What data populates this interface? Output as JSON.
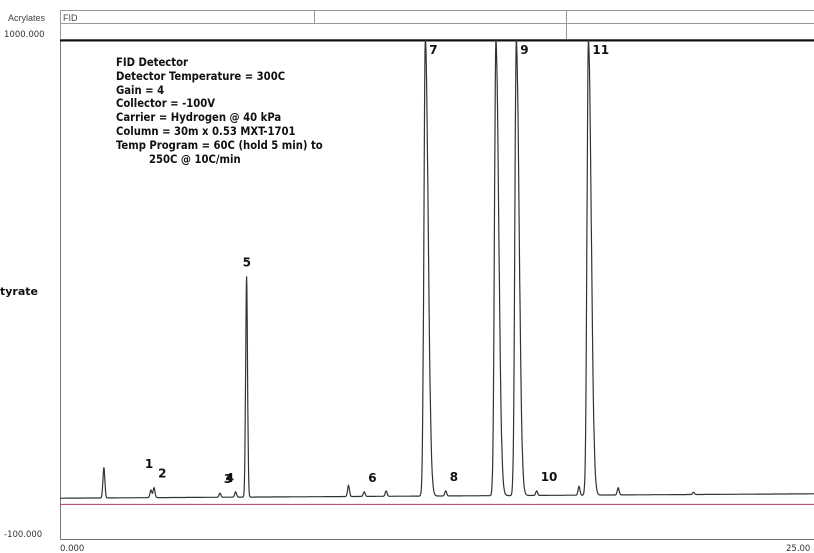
{
  "header": {
    "name_label": "Acrylates",
    "detector_value": "FID"
  },
  "annotation_lines": [
    "FID Detector",
    "Detector Temperature = 300C",
    "Gain = 4",
    "Collector = -100V",
    "Carrier = Hydrogen @ 40 kPa",
    "Column = 30m x 0.53 MXT-1701",
    "Temp Program = 60C (hold 5 min) to",
    "250C @ 10C/min"
  ],
  "colors": {
    "trace": "#333333",
    "baseline": "#b04060",
    "grid": "#888888"
  },
  "chart_data": {
    "type": "line",
    "title": "",
    "xlabel": "",
    "ylabel": "tyrate",
    "xlim": [
      0.0,
      25.0
    ],
    "ylim": [
      -100.0,
      1000.0
    ],
    "y_tick_labels": [
      "1000.000",
      "-100.000"
    ],
    "x_tick_labels": [
      "0.000",
      "25.00"
    ],
    "baseline_level": -10,
    "peaks": [
      {
        "label": "",
        "x": 1.4,
        "y": 60
      },
      {
        "label": "1",
        "x": 2.9,
        "y": 10
      },
      {
        "label": "2",
        "x": 3.0,
        "y": 15
      },
      {
        "label": "3",
        "x": 5.1,
        "y": 3
      },
      {
        "label": "4",
        "x": 5.6,
        "y": 6
      },
      {
        "label": "5",
        "x": 5.95,
        "y": 480
      },
      {
        "label": "",
        "x": 9.2,
        "y": 20
      },
      {
        "label": "6",
        "x": 9.7,
        "y": 6
      },
      {
        "label": "",
        "x": 10.4,
        "y": 8
      },
      {
        "label": "7",
        "x": 11.65,
        "y": 1000
      },
      {
        "label": "8",
        "x": 12.3,
        "y": 8
      },
      {
        "label": "",
        "x": 13.9,
        "y": 1000
      },
      {
        "label": "9",
        "x": 14.55,
        "y": 1000
      },
      {
        "label": "10",
        "x": 15.2,
        "y": 8
      },
      {
        "label": "",
        "x": 16.55,
        "y": 18
      },
      {
        "label": "11",
        "x": 16.85,
        "y": 1000
      },
      {
        "label": "",
        "x": 17.8,
        "y": 15
      },
      {
        "label": "",
        "x": 20.2,
        "y": 5
      }
    ]
  }
}
